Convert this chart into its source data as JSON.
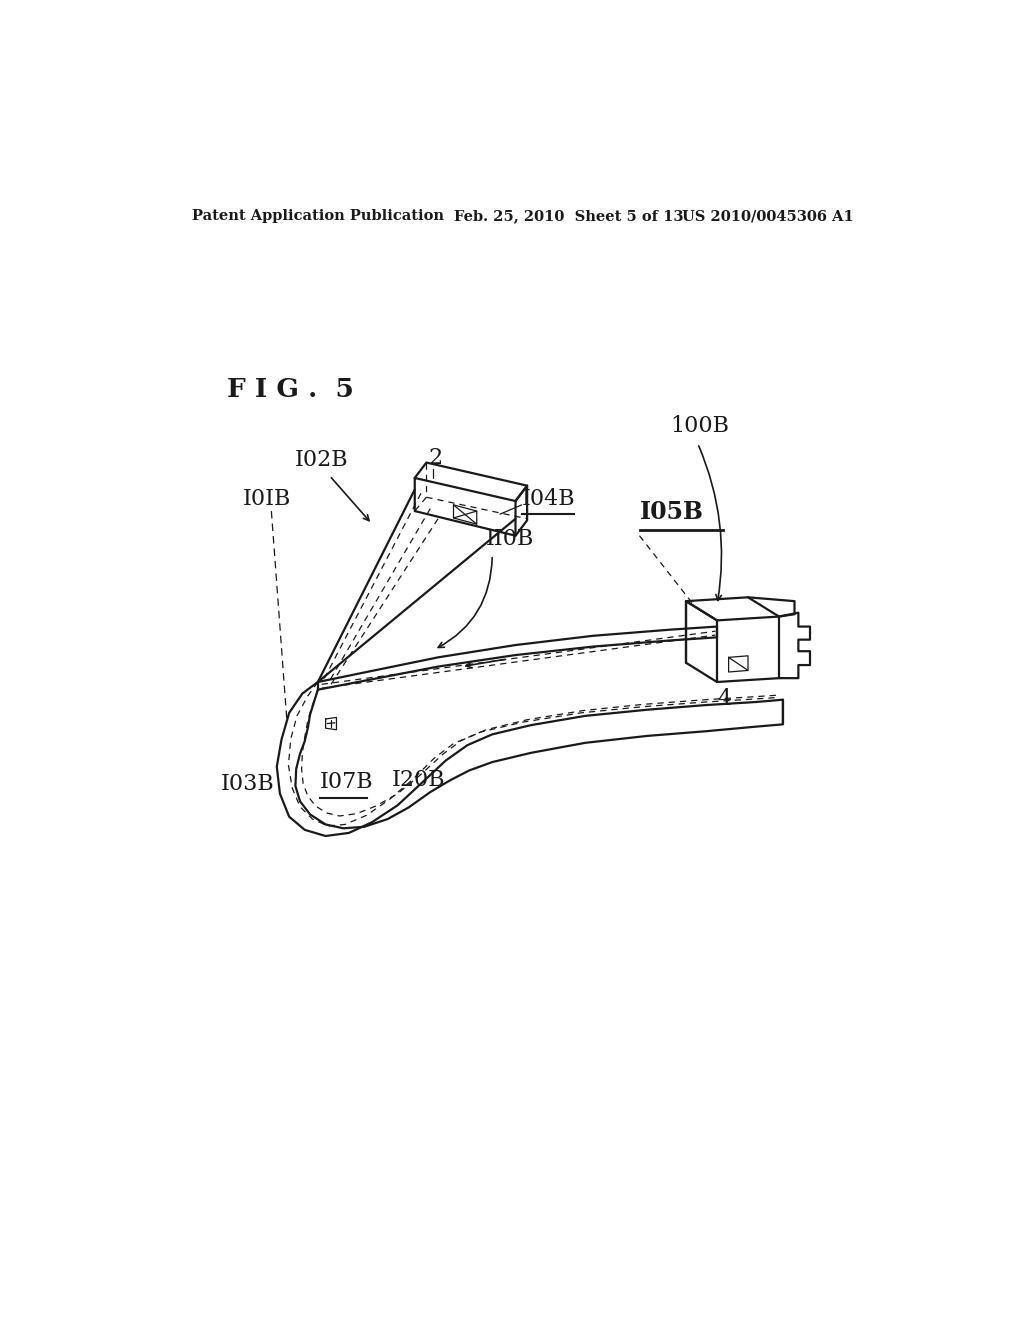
{
  "bg_color": "#ffffff",
  "text_color": "#1a1a1a",
  "header_left": "Patent Application Publication",
  "header_center": "Feb. 25, 2010  Sheet 5 of 13",
  "header_right": "US 2010/0045306 A1",
  "fig_label": "F I G .  5",
  "lw_main": 1.6,
  "lw_med": 1.2,
  "lw_thin": 0.9
}
